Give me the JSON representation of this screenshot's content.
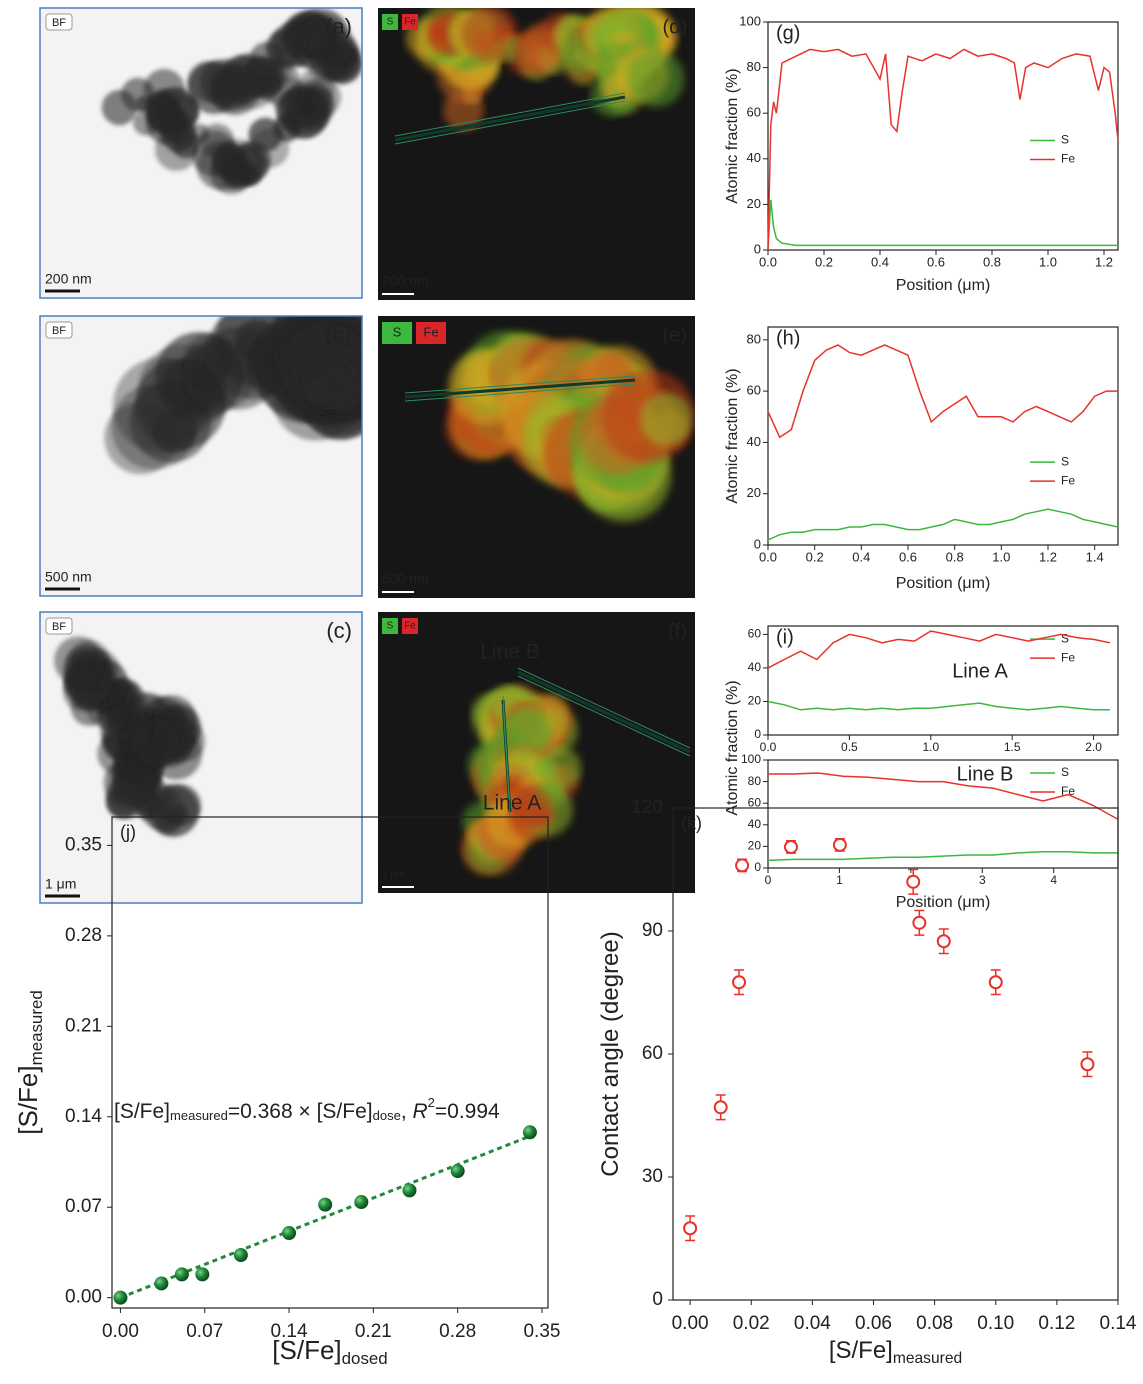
{
  "tem_images": [
    {
      "mode": "BF",
      "label": "(a)",
      "scalebar": "200 nm"
    },
    {
      "mode": "BF",
      "label": "(b)",
      "scalebar": "500 nm"
    },
    {
      "mode": "BF",
      "label": "(c)",
      "scalebar": "1 μm"
    }
  ],
  "eds_maps": [
    {
      "elements": [
        "S",
        "Fe"
      ],
      "label": "(d)",
      "scalebar": "200 nm"
    },
    {
      "elements": [
        "S",
        "Fe"
      ],
      "label": "(e)",
      "scalebar": "500 nm"
    },
    {
      "elements": [
        "S",
        "Fe"
      ],
      "label": "(f)",
      "scalebar": "1 μm",
      "annotations": [
        "Line B",
        "Line A"
      ]
    }
  ],
  "chart_data": [
    {
      "type": "line",
      "panel": "(g)",
      "xlabel": "Position (μm)",
      "ylabel": "Atomic fraction (%)",
      "legend": "center right",
      "xlim": [
        0,
        1.25
      ],
      "xticks": [
        {
          "value": 0,
          "label": "0.0"
        },
        0.2,
        0.4,
        0.6,
        0.8,
        {
          "value": 1,
          "label": "1.0"
        },
        1.2
      ],
      "ylim": [
        0,
        100
      ],
      "yticks": [
        0,
        20,
        40,
        60,
        80,
        100
      ],
      "x": [
        0,
        0.01,
        0.02,
        0.03,
        0.05,
        0.1,
        0.15,
        0.2,
        0.25,
        0.3,
        0.35,
        0.4,
        0.42,
        0.44,
        0.46,
        0.48,
        0.5,
        0.55,
        0.6,
        0.65,
        0.7,
        0.75,
        0.8,
        0.85,
        0.88,
        0.9,
        0.92,
        0.95,
        1.0,
        1.05,
        1.1,
        1.15,
        1.18,
        1.2,
        1.22,
        1.24,
        1.25
      ],
      "series": [
        {
          "name": "S",
          "color": "#3cb83c",
          "values": [
            0,
            22,
            10,
            5,
            3,
            2,
            2,
            2,
            2,
            2,
            2,
            2,
            2,
            2,
            2,
            2,
            2,
            2,
            2,
            2,
            2,
            2,
            2,
            2,
            2,
            2,
            2,
            2,
            2,
            2,
            2,
            2,
            2,
            2,
            2,
            2,
            2
          ]
        },
        {
          "name": "Fe",
          "color": "#e8322b",
          "values": [
            0,
            55,
            65,
            60,
            82,
            85,
            88,
            87,
            88,
            85,
            86,
            75,
            86,
            55,
            52,
            70,
            85,
            83,
            86,
            84,
            88,
            85,
            86,
            84,
            82,
            66,
            80,
            82,
            80,
            84,
            86,
            85,
            70,
            80,
            78,
            60,
            48
          ]
        }
      ]
    },
    {
      "type": "line",
      "panel": "(h)",
      "xlabel": "Position (μm)",
      "ylabel": "Atomic fraction (%)",
      "legend": "lower right",
      "xlim": [
        0,
        1.5
      ],
      "xticks": [
        {
          "value": 0,
          "label": "0.0"
        },
        0.2,
        0.4,
        0.6,
        0.8,
        {
          "value": 1,
          "label": "1.0"
        },
        1.2,
        1.4
      ],
      "ylim": [
        0,
        85
      ],
      "yticks": [
        0,
        20,
        40,
        60,
        80
      ],
      "x": [
        0,
        0.05,
        0.1,
        0.15,
        0.2,
        0.25,
        0.3,
        0.35,
        0.4,
        0.45,
        0.5,
        0.55,
        0.6,
        0.65,
        0.7,
        0.75,
        0.8,
        0.85,
        0.9,
        0.95,
        1.0,
        1.05,
        1.1,
        1.15,
        1.2,
        1.25,
        1.3,
        1.35,
        1.4,
        1.45,
        1.5
      ],
      "series": [
        {
          "name": "S",
          "color": "#3cb83c",
          "values": [
            2,
            4,
            5,
            5,
            6,
            6,
            6,
            7,
            7,
            8,
            8,
            7,
            6,
            6,
            7,
            8,
            10,
            9,
            8,
            8,
            9,
            10,
            12,
            13,
            14,
            13,
            12,
            10,
            9,
            8,
            7
          ]
        },
        {
          "name": "Fe",
          "color": "#e8322b",
          "values": [
            52,
            42,
            45,
            60,
            72,
            76,
            78,
            75,
            74,
            76,
            78,
            76,
            74,
            60,
            48,
            52,
            55,
            58,
            50,
            50,
            50,
            48,
            52,
            54,
            52,
            50,
            48,
            52,
            58,
            60,
            60
          ]
        }
      ]
    },
    {
      "type": "line",
      "panel": "(i)",
      "annotation": "Line A",
      "legend": "upper right",
      "xlim": [
        0,
        2.15
      ],
      "xticks": [
        {
          "value": 0,
          "label": "0.0"
        },
        0.5,
        {
          "value": 1,
          "label": "1.0"
        },
        1.5,
        {
          "value": 2,
          "label": "2.0"
        }
      ],
      "ylim": [
        0,
        65
      ],
      "yticks": [
        0,
        20,
        40,
        60
      ],
      "x": [
        0,
        0.1,
        0.2,
        0.3,
        0.4,
        0.5,
        0.6,
        0.7,
        0.8,
        0.9,
        1.0,
        1.1,
        1.2,
        1.3,
        1.4,
        1.5,
        1.6,
        1.7,
        1.8,
        1.9,
        2.0,
        2.1
      ],
      "series": [
        {
          "name": "S",
          "color": "#3cb83c",
          "values": [
            20,
            18,
            15,
            16,
            15,
            16,
            15,
            16,
            15,
            16,
            16,
            17,
            18,
            19,
            17,
            16,
            15,
            16,
            17,
            16,
            15,
            15
          ]
        },
        {
          "name": "Fe",
          "color": "#e8322b",
          "values": [
            40,
            45,
            50,
            45,
            55,
            60,
            58,
            55,
            57,
            56,
            62,
            60,
            58,
            56,
            60,
            58,
            56,
            58,
            60,
            58,
            57,
            55
          ]
        }
      ]
    },
    {
      "type": "line",
      "annotation": "Line B",
      "xlabel": "Position (μm)",
      "ylabel": "Atomic fraction (%)",
      "legend": "upper right",
      "xlim": [
        0,
        4.9
      ],
      "xticks": [
        0,
        1,
        2,
        3,
        4
      ],
      "ylim": [
        0,
        100
      ],
      "yticks": [
        0,
        20,
        40,
        60,
        80,
        100
      ],
      "x": [
        0,
        0.35,
        0.7,
        1.05,
        1.4,
        1.75,
        2.1,
        2.45,
        2.8,
        3.15,
        3.5,
        3.85,
        4.2,
        4.55,
        4.9
      ],
      "series": [
        {
          "name": "S",
          "color": "#3cb83c",
          "values": [
            7,
            8,
            8,
            8,
            9,
            10,
            10,
            11,
            12,
            12,
            14,
            15,
            15,
            14,
            14
          ]
        },
        {
          "name": "Fe",
          "color": "#e8322b",
          "values": [
            87,
            87,
            88,
            85,
            84,
            82,
            80,
            80,
            76,
            74,
            68,
            62,
            68,
            58,
            45
          ]
        }
      ]
    },
    {
      "type": "scatter",
      "panel": "(j)",
      "xlabel": "[S/Fe]",
      "xlabel_sub": "dosed",
      "ylabel": "[S/Fe]",
      "ylabel_sub": "measured",
      "annotation": [
        "[S/Fe]",
        "measured",
        "=0.368 × [S/Fe]",
        "dose",
        ", ",
        "R",
        "2",
        "=0.994"
      ],
      "xlim": [
        -0.007,
        0.355
      ],
      "xticks": [
        {
          "value": 0,
          "label": "0.00"
        },
        0.07,
        0.14,
        0.21,
        0.28,
        0.35
      ],
      "ylim": [
        -0.008,
        0.372
      ],
      "yticks": [
        {
          "value": 0,
          "label": "0.00"
        },
        0.07,
        0.14,
        0.21,
        0.28,
        0.35
      ],
      "x": [
        0,
        0.034,
        0.051,
        0.068,
        0.1,
        0.14,
        0.17,
        0.2,
        0.24,
        0.28,
        0.34
      ],
      "values": [
        0,
        0.011,
        0.018,
        0.018,
        0.033,
        0.05,
        0.072,
        0.074,
        0.083,
        0.098,
        0.128
      ],
      "color": "#1f8a3a",
      "fit": {
        "x": [
          0,
          0.34
        ],
        "values": [
          0,
          0.125
        ]
      }
    },
    {
      "type": "errorbar",
      "panel": "(k)",
      "xlabel": "[S/Fe]",
      "xlabel_sub": "measured",
      "ylabel": "Contact angle (degree)",
      "xlim": [
        -0.0056,
        0.14
      ],
      "xticks": [
        {
          "value": 0,
          "label": "0.00"
        },
        0.02,
        0.04,
        0.06,
        0.08,
        {
          "value": 0.1,
          "label": "0.10"
        },
        0.12,
        0.14
      ],
      "ylim": [
        0,
        120
      ],
      "yticks": [
        0,
        30,
        60,
        90,
        120
      ],
      "x": [
        0,
        0.01,
        0.016,
        0.017,
        0.033,
        0.049,
        0.073,
        0.075,
        0.083,
        0.1,
        0.13
      ],
      "values": [
        17.5,
        47,
        77.5,
        106,
        110.5,
        111,
        102,
        92,
        87.5,
        77.5,
        57.5
      ],
      "errors": [
        3,
        3,
        3,
        1.5,
        1.5,
        1.5,
        3,
        3,
        3,
        3,
        3
      ],
      "color": "#e8322b"
    }
  ]
}
